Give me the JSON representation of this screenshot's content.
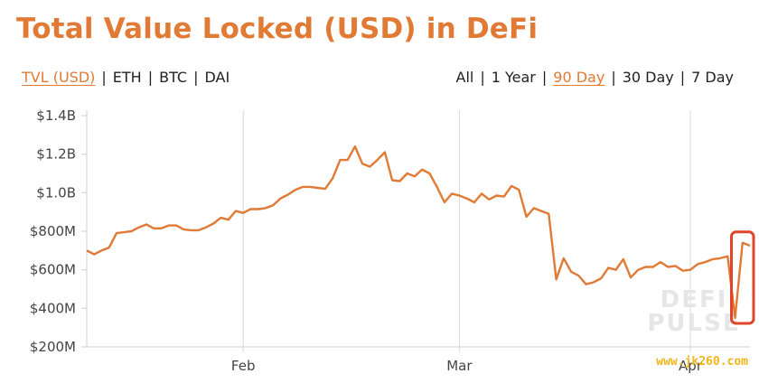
{
  "title": "Total Value Locked (USD) in DeFi",
  "unit_tabs": [
    {
      "label": "TVL (USD)",
      "active": true
    },
    {
      "label": "ETH",
      "active": false
    },
    {
      "label": "BTC",
      "active": false
    },
    {
      "label": "DAI",
      "active": false
    }
  ],
  "range_tabs": [
    {
      "label": "All",
      "active": false
    },
    {
      "label": "1 Year",
      "active": false
    },
    {
      "label": "90 Day",
      "active": true
    },
    {
      "label": "30 Day",
      "active": false
    },
    {
      "label": "7 Day",
      "active": false
    }
  ],
  "watermark": [
    "DEFI",
    "PULSE"
  ],
  "site_watermark": "www.jk260.com",
  "colors": {
    "line": "#e07a35",
    "highlight_box": "#e0442a",
    "title": "#e07a35"
  },
  "chart_data": {
    "type": "line",
    "title": "Total Value Locked (USD) in DeFi",
    "xlabel": "",
    "ylabel": "",
    "x_start": "2020-01-11",
    "x_tick_labels": [
      {
        "label": "Feb",
        "date": "2020-02-01"
      },
      {
        "label": "Mar",
        "date": "2020-03-01"
      },
      {
        "label": "Apr",
        "date": "2020-04-01"
      }
    ],
    "y_tick_labels": [
      "$200M",
      "$400M",
      "$600M",
      "$800M",
      "$1.0B",
      "$1.2B",
      "$1.4B"
    ],
    "y_ticks": [
      200,
      400,
      600,
      800,
      1000,
      1200,
      1400
    ],
    "y_unit": "USD millions",
    "ylim": [
      200,
      1400
    ],
    "grid": "vertical-month-lines",
    "legend": "none",
    "highlight": "final drop and rebound (last three points) boxed in red",
    "series": [
      {
        "values": [
          700,
          680,
          700,
          715,
          790,
          795,
          800,
          820,
          835,
          815,
          815,
          830,
          830,
          810,
          805,
          805,
          820,
          840,
          870,
          860,
          905,
          895,
          915,
          915,
          920,
          935,
          970,
          990,
          1015,
          1030,
          1030,
          1025,
          1020,
          1075,
          1170,
          1170,
          1240,
          1150,
          1135,
          1170,
          1210,
          1065,
          1060,
          1100,
          1085,
          1120,
          1100,
          1030,
          950,
          995,
          985,
          970,
          950,
          995,
          965,
          985,
          980,
          1035,
          1015,
          875,
          920,
          905,
          890,
          550,
          660,
          590,
          570,
          525,
          535,
          555,
          610,
          600,
          655,
          560,
          600,
          615,
          615,
          640,
          615,
          620,
          595,
          600,
          630,
          640,
          655,
          660,
          670,
          350,
          740,
          725
        ]
      }
    ]
  }
}
